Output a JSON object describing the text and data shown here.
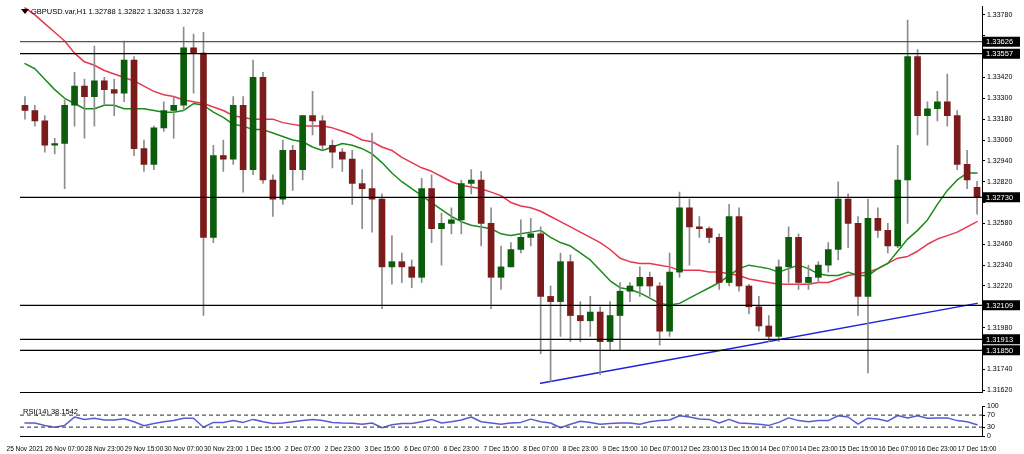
{
  "chart_data": [
    {
      "type": "candlestick",
      "title": "GBPUSD.var,H1 1.32788 1.32822 1.32633 1.32728",
      "categories": [
        "25 Nov 2021",
        null,
        null,
        null,
        "26 Nov 07:00",
        null,
        null,
        null,
        "28 Nov 23:00",
        null,
        null,
        null,
        "29 Nov 15:00",
        null,
        null,
        null,
        "30 Nov 07:00",
        null,
        null,
        null,
        "30 Nov 23:00",
        null,
        null,
        null,
        "1 Dec 15:00",
        null,
        null,
        null,
        "2 Dec 07:00",
        null,
        null,
        null,
        "2 Dec 23:00",
        null,
        null,
        null,
        "3 Dec 15:00",
        null,
        null,
        null,
        "6 Dec 07:00",
        null,
        null,
        null,
        "6 Dec 23:00",
        null,
        null,
        null,
        "7 Dec 15:00",
        null,
        null,
        null,
        "8 Dec 07:00",
        null,
        null,
        null,
        "8 Dec 23:00",
        null,
        null,
        null,
        "9 Dec 15:00",
        null,
        null,
        null,
        "10 Dec 07:00",
        null,
        null,
        null,
        "12 Dec 23:00",
        null,
        null,
        null,
        "13 Dec 15:00",
        null,
        null,
        null,
        "14 Dec 07:00",
        null,
        null,
        null,
        "14 Dec 23:00",
        null,
        null,
        null,
        "15 Dec 15:00",
        null,
        null,
        null,
        "16 Dec 07:00",
        null,
        null,
        null,
        "16 Dec 23:00",
        null,
        null,
        null,
        "17 Dec 15:00"
      ],
      "ohlc": [
        [
          1.3326,
          1.3331,
          1.3318,
          1.3323
        ],
        [
          1.3323,
          1.3326,
          1.3314,
          1.3317
        ],
        [
          1.3317,
          1.332,
          1.3299,
          1.3303
        ],
        [
          1.3303,
          1.3307,
          1.3298,
          1.3304
        ],
        [
          1.3304,
          1.3329,
          1.3278,
          1.3326
        ],
        [
          1.3326,
          1.3345,
          1.3314,
          1.3337
        ],
        [
          1.3337,
          1.3341,
          1.3307,
          1.3331
        ],
        [
          1.3331,
          1.336,
          1.3314,
          1.334
        ],
        [
          1.334,
          1.3342,
          1.3326,
          1.3335
        ],
        [
          1.3335,
          1.3341,
          1.332,
          1.3333
        ],
        [
          1.3333,
          1.3363,
          1.3328,
          1.3352
        ],
        [
          1.3352,
          1.3354,
          1.3297,
          1.3301
        ],
        [
          1.3301,
          1.3306,
          1.3288,
          1.3292
        ],
        [
          1.3292,
          1.3314,
          1.3289,
          1.3313
        ],
        [
          1.3313,
          1.3328,
          1.3311,
          1.3323
        ],
        [
          1.3323,
          1.3331,
          1.3307,
          1.3326
        ],
        [
          1.3326,
          1.3371,
          1.3323,
          1.3359
        ],
        [
          1.3359,
          1.3367,
          1.3333,
          1.3356
        ],
        [
          1.3356,
          1.3368,
          1.3205,
          1.325
        ],
        [
          1.325,
          1.3303,
          1.3247,
          1.3297
        ],
        [
          1.3297,
          1.3306,
          1.3288,
          1.3295
        ],
        [
          1.3295,
          1.3331,
          1.3292,
          1.3326
        ],
        [
          1.3326,
          1.3331,
          1.3276,
          1.3289
        ],
        [
          1.3289,
          1.3352,
          1.3286,
          1.3342
        ],
        [
          1.3342,
          1.3345,
          1.3281,
          1.3283
        ],
        [
          1.3283,
          1.3286,
          1.3262,
          1.3272
        ],
        [
          1.3272,
          1.3306,
          1.3269,
          1.33
        ],
        [
          1.33,
          1.3303,
          1.3277,
          1.3289
        ],
        [
          1.3289,
          1.332,
          1.3283,
          1.332
        ],
        [
          1.332,
          1.3334,
          1.3309,
          1.3317
        ],
        [
          1.3317,
          1.332,
          1.33,
          1.3303
        ],
        [
          1.3303,
          1.3306,
          1.329,
          1.3299
        ],
        [
          1.3299,
          1.3301,
          1.3288,
          1.3295
        ],
        [
          1.3295,
          1.33,
          1.3269,
          1.3281
        ],
        [
          1.3281,
          1.3289,
          1.3255,
          1.3278
        ],
        [
          1.3278,
          1.331,
          1.3253,
          1.3272
        ],
        [
          1.3272,
          1.3275,
          1.3209,
          1.3233
        ],
        [
          1.3233,
          1.3251,
          1.3223,
          1.3236
        ],
        [
          1.3236,
          1.3241,
          1.3224,
          1.3233
        ],
        [
          1.3233,
          1.3237,
          1.3221,
          1.3227
        ],
        [
          1.3227,
          1.3284,
          1.3224,
          1.3278
        ],
        [
          1.3278,
          1.3286,
          1.3247,
          1.3255
        ],
        [
          1.3255,
          1.3264,
          1.3234,
          1.3258
        ],
        [
          1.3258,
          1.3267,
          1.3252,
          1.326
        ],
        [
          1.326,
          1.3283,
          1.3252,
          1.3281
        ],
        [
          1.3281,
          1.3289,
          1.3275,
          1.3283
        ],
        [
          1.3283,
          1.3288,
          1.3245,
          1.3258
        ],
        [
          1.3258,
          1.3267,
          1.3209,
          1.3227
        ],
        [
          1.3227,
          1.3245,
          1.322,
          1.3233
        ],
        [
          1.3233,
          1.3247,
          1.3233,
          1.3243
        ],
        [
          1.3243,
          1.326,
          1.3241,
          1.325
        ],
        [
          1.325,
          1.3261,
          1.3245,
          1.3252
        ],
        [
          1.3252,
          1.3256,
          1.3183,
          1.3216
        ],
        [
          1.3216,
          1.3222,
          1.3167,
          1.3213
        ],
        [
          1.3213,
          1.3241,
          1.3193,
          1.3236
        ],
        [
          1.3236,
          1.324,
          1.319,
          1.3205
        ],
        [
          1.3205,
          1.3213,
          1.319,
          1.3202
        ],
        [
          1.3202,
          1.3216,
          1.3193,
          1.3207
        ],
        [
          1.3207,
          1.321,
          1.3171,
          1.319
        ],
        [
          1.319,
          1.3213,
          1.3185,
          1.3205
        ],
        [
          1.3205,
          1.3224,
          1.3185,
          1.3219
        ],
        [
          1.3219,
          1.3224,
          1.3213,
          1.3222
        ],
        [
          1.3222,
          1.3233,
          1.3216,
          1.3227
        ],
        [
          1.3227,
          1.323,
          1.3216,
          1.3222
        ],
        [
          1.3222,
          1.3224,
          1.3188,
          1.3196
        ],
        [
          1.3196,
          1.3241,
          1.3193,
          1.323
        ],
        [
          1.323,
          1.3276,
          1.3227,
          1.3267
        ],
        [
          1.3267,
          1.3272,
          1.3234,
          1.3256
        ],
        [
          1.3256,
          1.3262,
          1.325,
          1.3255
        ],
        [
          1.3255,
          1.3256,
          1.3247,
          1.325
        ],
        [
          1.325,
          1.3252,
          1.322,
          1.3224
        ],
        [
          1.3224,
          1.3269,
          1.3222,
          1.3262
        ],
        [
          1.3262,
          1.3267,
          1.3219,
          1.3222
        ],
        [
          1.3222,
          1.3223,
          1.3206,
          1.321
        ],
        [
          1.321,
          1.3216,
          1.3196,
          1.3199
        ],
        [
          1.3199,
          1.3205,
          1.319,
          1.3193
        ],
        [
          1.3193,
          1.3237,
          1.319,
          1.3233
        ],
        [
          1.3233,
          1.3256,
          1.3224,
          1.325
        ],
        [
          1.325,
          1.3252,
          1.322,
          1.3224
        ],
        [
          1.3224,
          1.3234,
          1.322,
          1.3227
        ],
        [
          1.3227,
          1.3236,
          1.3224,
          1.3234
        ],
        [
          1.3234,
          1.3247,
          1.323,
          1.3243
        ],
        [
          1.3243,
          1.3282,
          1.3237,
          1.3272
        ],
        [
          1.3272,
          1.3275,
          1.3244,
          1.3258
        ],
        [
          1.3258,
          1.3262,
          1.3205,
          1.3216
        ],
        [
          1.3216,
          1.3272,
          1.3172,
          1.3261
        ],
        [
          1.3261,
          1.3267,
          1.325,
          1.3254
        ],
        [
          1.3254,
          1.3258,
          1.3241,
          1.3245
        ],
        [
          1.3245,
          1.3303,
          1.3244,
          1.3283
        ],
        [
          1.3283,
          1.3375,
          1.3258,
          1.3354
        ],
        [
          1.3354,
          1.3358,
          1.3309,
          1.332
        ],
        [
          1.332,
          1.3328,
          1.3303,
          1.3324
        ],
        [
          1.3324,
          1.3334,
          1.3317,
          1.3328
        ],
        [
          1.3328,
          1.3344,
          1.3314,
          1.332
        ],
        [
          1.332,
          1.3323,
          1.3289,
          1.3292
        ],
        [
          1.3292,
          1.33,
          1.3278,
          1.3283
        ],
        [
          1.32788,
          1.32822,
          1.32633,
          1.32728
        ]
      ],
      "series": [
        {
          "type": "line",
          "color": "#1a8c1a",
          "values": [
            1.335,
            1.3347,
            1.3341,
            1.3335,
            1.333,
            1.3327,
            1.3324,
            1.3324,
            1.3326,
            1.3326,
            1.3324,
            1.3324,
            1.3324,
            1.3323,
            1.3322,
            1.3322,
            1.3323,
            1.3327,
            1.3326,
            1.3322,
            1.3319,
            1.3315,
            1.3314,
            1.3312,
            1.3312,
            1.331,
            1.3308,
            1.3306,
            1.3305,
            1.3302,
            1.33,
            1.3302,
            1.3304,
            1.3303,
            1.3301,
            1.3298,
            1.3293,
            1.3287,
            1.3282,
            1.3278,
            1.3274,
            1.327,
            1.3266,
            1.3262,
            1.3259,
            1.3257,
            1.3256,
            1.3255,
            1.3252,
            1.3251,
            1.3252,
            1.3253,
            1.3254,
            1.325,
            1.3247,
            1.3245,
            1.3241,
            1.3237,
            1.3231,
            1.3225,
            1.3221,
            1.322,
            1.3218,
            1.3215,
            1.3212,
            1.3211,
            1.3212,
            1.3215,
            1.3218,
            1.3221,
            1.3224,
            1.3228,
            1.3232,
            1.3234,
            1.3233,
            1.3232,
            1.323,
            1.3232,
            1.3234,
            1.3232,
            1.3229,
            1.3228,
            1.3228,
            1.323,
            1.3228,
            1.3228,
            1.3232,
            1.3235,
            1.3242,
            1.3249,
            1.3254,
            1.326,
            1.3269,
            1.3277,
            1.3283,
            1.3287,
            1.3287
          ]
        },
        {
          "type": "line",
          "color": "#e8364f",
          "values": [
            1.3382,
            1.3378,
            1.3373,
            1.3368,
            1.3363,
            1.3356,
            1.3351,
            1.3349,
            1.3346,
            1.3344,
            1.3342,
            1.334,
            1.3337,
            1.3334,
            1.3332,
            1.3331,
            1.3329,
            1.3328,
            1.3327,
            1.3325,
            1.3323,
            1.332,
            1.3319,
            1.3318,
            1.3318,
            1.3318,
            1.3316,
            1.3315,
            1.3314,
            1.3314,
            1.3314,
            1.3313,
            1.3311,
            1.3309,
            1.3306,
            1.3305,
            1.3302,
            1.33,
            1.3296,
            1.3293,
            1.329,
            1.3288,
            1.3285,
            1.3282,
            1.328,
            1.3279,
            1.3278,
            1.3276,
            1.3274,
            1.327,
            1.3268,
            1.3267,
            1.3265,
            1.3262,
            1.3259,
            1.3256,
            1.3253,
            1.325,
            1.3247,
            1.3243,
            1.3238,
            1.3236,
            1.3235,
            1.3235,
            1.3234,
            1.3233,
            1.3231,
            1.3231,
            1.3231,
            1.323,
            1.323,
            1.3229,
            1.3228,
            1.3226,
            1.3225,
            1.3224,
            1.3223,
            1.3223,
            1.3223,
            1.3223,
            1.3224,
            1.3224,
            1.3226,
            1.3228,
            1.3229,
            1.323,
            1.3232,
            1.3235,
            1.3238,
            1.3239,
            1.3242,
            1.3246,
            1.3249,
            1.3251,
            1.3253,
            1.3256,
            1.3259
          ]
        },
        {
          "type": "line",
          "color": "#1f1fe0",
          "x": [
            "8 Dec 07:00",
            "17 Dec 15:00"
          ],
          "values": [
            1.3166,
            1.3212
          ]
        }
      ],
      "ref_lines": [
        {
          "axis": "y",
          "value": 1.33626,
          "label": "1.33626",
          "color": "#555555"
        },
        {
          "axis": "y",
          "value": 1.33557,
          "label": "1.33557",
          "color": "#000000"
        },
        {
          "axis": "y",
          "value": 1.3273,
          "label": "1.32730",
          "color": "#000000"
        },
        {
          "axis": "y",
          "value": 1.32109,
          "label": "1.32109",
          "color": "#000000"
        },
        {
          "axis": "y",
          "value": 1.31913,
          "label": "1.31913",
          "color": "#000000"
        },
        {
          "axis": "y",
          "value": 1.3185,
          "label": "1.31850",
          "color": "#000000"
        }
      ],
      "ylim": [
        1.3161,
        1.3383
      ],
      "yticks": [
        {
          "value": 1.3378,
          "label": "1.33780"
        },
        {
          "value": 1.3366,
          "label": null
        },
        {
          "value": 1.3354,
          "label": null
        },
        {
          "value": 1.3342,
          "label": "1.33420"
        },
        {
          "value": 1.333,
          "label": "1.33300"
        },
        {
          "value": 1.3318,
          "label": "1.33180"
        },
        {
          "value": 1.3306,
          "label": "1.33060"
        },
        {
          "value": 1.3294,
          "label": "1.32940"
        },
        {
          "value": 1.3282,
          "label": "1.32820"
        },
        {
          "value": 1.327,
          "label": null
        },
        {
          "value": 1.3258,
          "label": "1.32580"
        },
        {
          "value": 1.3246,
          "label": "1.32460"
        },
        {
          "value": 1.3234,
          "label": "1.32340"
        },
        {
          "value": 1.3222,
          "label": "1.32220"
        },
        {
          "value": 1.321,
          "label": null
        },
        {
          "value": 1.3198,
          "label": "1.31980"
        },
        {
          "value": 1.3186,
          "label": null
        },
        {
          "value": 1.3174,
          "label": "1.31740"
        },
        {
          "value": 1.3162,
          "label": "1.31620"
        }
      ],
      "tick_labels": "y"
    },
    {
      "type": "line",
      "title": "RSI(14) 38.1542",
      "categories": [
        "25 Nov 2021",
        null,
        null,
        null,
        "26 Nov 07:00",
        null,
        null,
        null,
        "28 Nov 23:00",
        null,
        null,
        null,
        "29 Nov 15:00",
        null,
        null,
        null,
        "30 Nov 07:00",
        null,
        null,
        null,
        "30 Nov 23:00",
        null,
        null,
        null,
        "1 Dec 15:00",
        null,
        null,
        null,
        "2 Dec 07:00",
        null,
        null,
        null,
        "2 Dec 23:00",
        null,
        null,
        null,
        "3 Dec 15:00",
        null,
        null,
        null,
        "6 Dec 07:00",
        null,
        null,
        null,
        "6 Dec 23:00",
        null,
        null,
        null,
        "7 Dec 15:00",
        null,
        null,
        null,
        "8 Dec 07:00",
        null,
        null,
        null,
        "8 Dec 23:00",
        null,
        null,
        null,
        "9 Dec 15:00",
        null,
        null,
        null,
        "10 Dec 07:00",
        null,
        null,
        null,
        "12 Dec 23:00",
        null,
        null,
        null,
        "13 Dec 15:00",
        null,
        null,
        null,
        "14 Dec 07:00",
        null,
        null,
        null,
        "14 Dec 23:00",
        null,
        null,
        null,
        "15 Dec 15:00",
        null,
        null,
        null,
        "16 Dec 07:00",
        null,
        null,
        null,
        "16 Dec 23:00",
        null,
        null,
        null,
        "17 Dec 15:00"
      ],
      "series": [
        {
          "color": "#5a5ad2",
          "values": [
            44,
            44,
            36,
            30,
            36,
            64,
            56,
            60,
            54,
            54,
            58,
            48,
            35,
            42,
            48,
            52,
            60,
            60,
            30,
            46,
            46,
            52,
            46,
            56,
            48,
            42,
            44,
            48,
            52,
            56,
            52,
            46,
            44,
            43,
            40,
            44,
            28,
            38,
            42,
            42,
            48,
            56,
            44,
            48,
            54,
            64,
            48,
            44,
            40,
            44,
            46,
            57,
            48,
            44,
            28,
            40,
            50,
            46,
            40,
            42,
            44,
            44,
            40,
            48,
            52,
            54,
            68,
            64,
            57,
            56,
            44,
            56,
            44,
            42,
            40,
            36,
            46,
            61,
            52,
            48,
            52,
            52,
            68,
            64,
            40,
            60,
            57,
            50,
            69,
            61,
            68,
            60,
            61,
            61,
            52,
            48,
            38
          ]
        }
      ],
      "ref_lines": [
        {
          "axis": "y",
          "value": 70,
          "color": "#555555",
          "line_style": "dashed"
        },
        {
          "axis": "y",
          "value": 30,
          "color": "#555555",
          "line_style": "dashed"
        }
      ],
      "ylim": [
        0,
        100
      ],
      "yticks": [
        0,
        30,
        70,
        100
      ]
    }
  ]
}
